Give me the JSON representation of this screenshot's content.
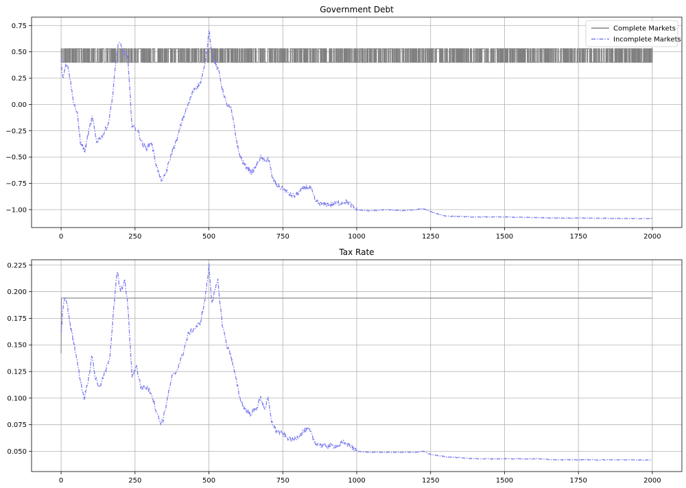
{
  "chart_data": [
    {
      "type": "line",
      "title": "Government Debt",
      "xlabel": "",
      "ylabel": "",
      "xlim": [
        -100,
        2100
      ],
      "ylim": [
        -1.17,
        0.83
      ],
      "x_ticks": [
        0,
        250,
        500,
        750,
        1000,
        1250,
        1500,
        1750,
        2000
      ],
      "x_tick_labels": [
        "0",
        "250",
        "500",
        "750",
        "1000",
        "1250",
        "1500",
        "1750",
        "2000"
      ],
      "y_ticks": [
        -1.0,
        -0.75,
        -0.5,
        -0.25,
        0.0,
        0.25,
        0.5,
        0.75
      ],
      "y_tick_labels": [
        "−1.00",
        "−0.75",
        "−0.50",
        "−0.25",
        "0.00",
        "0.25",
        "0.50",
        "0.75"
      ],
      "grid": true,
      "legend": "top-right",
      "series": [
        {
          "name": "Complete Markets",
          "style": "solid",
          "color": "#808080",
          "switching_band": {
            "low": 0.4,
            "high": 0.53,
            "x_start": 0,
            "x_end": 2000
          }
        },
        {
          "name": "Incomplete Markets",
          "style": "dashdot",
          "color": "#7b7bef",
          "points": [
            [
              0,
              0.45
            ],
            [
              5,
              0.25
            ],
            [
              15,
              0.38
            ],
            [
              25,
              0.35
            ],
            [
              40,
              0.05
            ],
            [
              55,
              -0.1
            ],
            [
              65,
              -0.35
            ],
            [
              80,
              -0.45
            ],
            [
              90,
              -0.3
            ],
            [
              105,
              -0.12
            ],
            [
              120,
              -0.35
            ],
            [
              140,
              -0.3
            ],
            [
              160,
              -0.18
            ],
            [
              175,
              0.1
            ],
            [
              185,
              0.4
            ],
            [
              195,
              0.6
            ],
            [
              210,
              0.5
            ],
            [
              225,
              0.45
            ],
            [
              240,
              -0.2
            ],
            [
              260,
              -0.25
            ],
            [
              275,
              -0.38
            ],
            [
              290,
              -0.42
            ],
            [
              305,
              -0.35
            ],
            [
              320,
              -0.55
            ],
            [
              335,
              -0.7
            ],
            [
              345,
              -0.72
            ],
            [
              360,
              -0.6
            ],
            [
              375,
              -0.45
            ],
            [
              390,
              -0.35
            ],
            [
              410,
              -0.15
            ],
            [
              430,
              0.0
            ],
            [
              450,
              0.15
            ],
            [
              470,
              0.2
            ],
            [
              485,
              0.35
            ],
            [
              495,
              0.55
            ],
            [
              500,
              0.72
            ],
            [
              510,
              0.5
            ],
            [
              520,
              0.4
            ],
            [
              535,
              0.3
            ],
            [
              545,
              0.15
            ],
            [
              560,
              0.0
            ],
            [
              575,
              -0.05
            ],
            [
              585,
              -0.2
            ],
            [
              600,
              -0.45
            ],
            [
              615,
              -0.55
            ],
            [
              630,
              -0.6
            ],
            [
              645,
              -0.65
            ],
            [
              660,
              -0.58
            ],
            [
              675,
              -0.5
            ],
            [
              690,
              -0.55
            ],
            [
              700,
              -0.5
            ],
            [
              715,
              -0.7
            ],
            [
              730,
              -0.77
            ],
            [
              750,
              -0.8
            ],
            [
              770,
              -0.85
            ],
            [
              790,
              -0.87
            ],
            [
              810,
              -0.82
            ],
            [
              830,
              -0.78
            ],
            [
              845,
              -0.8
            ],
            [
              860,
              -0.92
            ],
            [
              885,
              -0.95
            ],
            [
              910,
              -0.95
            ],
            [
              930,
              -0.94
            ],
            [
              950,
              -0.93
            ],
            [
              965,
              -0.92
            ],
            [
              985,
              -0.97
            ],
            [
              1000,
              -1.0
            ],
            [
              1030,
              -1.01
            ],
            [
              1060,
              -1.01
            ],
            [
              1100,
              -1.0
            ],
            [
              1150,
              -1.01
            ],
            [
              1200,
              -1.0
            ],
            [
              1220,
              -0.99
            ],
            [
              1235,
              -1.0
            ],
            [
              1260,
              -1.03
            ],
            [
              1300,
              -1.06
            ],
            [
              1400,
              -1.07
            ],
            [
              1500,
              -1.07
            ],
            [
              1600,
              -1.075
            ],
            [
              1700,
              -1.08
            ],
            [
              1800,
              -1.08
            ],
            [
              1900,
              -1.085
            ],
            [
              2000,
              -1.085
            ]
          ]
        }
      ]
    },
    {
      "type": "line",
      "title": "Tax Rate",
      "xlabel": "",
      "ylabel": "",
      "xlim": [
        -100,
        2100
      ],
      "ylim": [
        0.031,
        0.23
      ],
      "x_ticks": [
        0,
        250,
        500,
        750,
        1000,
        1250,
        1500,
        1750,
        2000
      ],
      "x_tick_labels": [
        "0",
        "250",
        "500",
        "750",
        "1000",
        "1250",
        "1500",
        "1750",
        "2000"
      ],
      "y_ticks": [
        0.05,
        0.075,
        0.1,
        0.125,
        0.15,
        0.175,
        0.2,
        0.225
      ],
      "y_tick_labels": [
        "0.050",
        "0.075",
        "0.100",
        "0.125",
        "0.150",
        "0.175",
        "0.200",
        "0.225"
      ],
      "grid": true,
      "series": [
        {
          "name": "Complete Markets",
          "style": "solid",
          "color": "#808080",
          "points": [
            [
              0,
              0.142
            ],
            [
              1,
              0.194
            ],
            [
              2000,
              0.194
            ]
          ]
        },
        {
          "name": "Incomplete Markets",
          "style": "dashdot",
          "color": "#7b7bef",
          "points": [
            [
              0,
              0.16
            ],
            [
              5,
              0.18
            ],
            [
              12,
              0.195
            ],
            [
              20,
              0.19
            ],
            [
              30,
              0.17
            ],
            [
              45,
              0.15
            ],
            [
              60,
              0.125
            ],
            [
              70,
              0.11
            ],
            [
              78,
              0.1
            ],
            [
              90,
              0.115
            ],
            [
              105,
              0.14
            ],
            [
              115,
              0.12
            ],
            [
              130,
              0.11
            ],
            [
              150,
              0.125
            ],
            [
              165,
              0.14
            ],
            [
              180,
              0.19
            ],
            [
              190,
              0.22
            ],
            [
              200,
              0.2
            ],
            [
              215,
              0.21
            ],
            [
              225,
              0.19
            ],
            [
              240,
              0.12
            ],
            [
              255,
              0.13
            ],
            [
              270,
              0.11
            ],
            [
              290,
              0.11
            ],
            [
              305,
              0.105
            ],
            [
              320,
              0.09
            ],
            [
              335,
              0.077
            ],
            [
              345,
              0.08
            ],
            [
              360,
              0.1
            ],
            [
              375,
              0.12
            ],
            [
              390,
              0.125
            ],
            [
              410,
              0.14
            ],
            [
              430,
              0.16
            ],
            [
              450,
              0.165
            ],
            [
              470,
              0.17
            ],
            [
              485,
              0.19
            ],
            [
              495,
              0.21
            ],
            [
              500,
              0.225
            ],
            [
              510,
              0.19
            ],
            [
              520,
              0.2
            ],
            [
              530,
              0.21
            ],
            [
              545,
              0.17
            ],
            [
              560,
              0.15
            ],
            [
              575,
              0.14
            ],
            [
              590,
              0.12
            ],
            [
              605,
              0.1
            ],
            [
              620,
              0.09
            ],
            [
              640,
              0.085
            ],
            [
              660,
              0.09
            ],
            [
              675,
              0.1
            ],
            [
              690,
              0.09
            ],
            [
              700,
              0.1
            ],
            [
              710,
              0.08
            ],
            [
              725,
              0.07
            ],
            [
              745,
              0.067
            ],
            [
              765,
              0.063
            ],
            [
              785,
              0.06
            ],
            [
              805,
              0.065
            ],
            [
              825,
              0.07
            ],
            [
              840,
              0.07
            ],
            [
              860,
              0.058
            ],
            [
              885,
              0.055
            ],
            [
              910,
              0.055
            ],
            [
              935,
              0.055
            ],
            [
              955,
              0.058
            ],
            [
              975,
              0.056
            ],
            [
              990,
              0.052
            ],
            [
              1000,
              0.05
            ],
            [
              1050,
              0.049
            ],
            [
              1100,
              0.049
            ],
            [
              1150,
              0.049
            ],
            [
              1200,
              0.049
            ],
            [
              1225,
              0.05
            ],
            [
              1250,
              0.047
            ],
            [
              1300,
              0.045
            ],
            [
              1400,
              0.043
            ],
            [
              1500,
              0.043
            ],
            [
              1600,
              0.043
            ],
            [
              1700,
              0.042
            ],
            [
              1800,
              0.042
            ],
            [
              1900,
              0.042
            ],
            [
              2000,
              0.042
            ]
          ]
        }
      ]
    }
  ]
}
